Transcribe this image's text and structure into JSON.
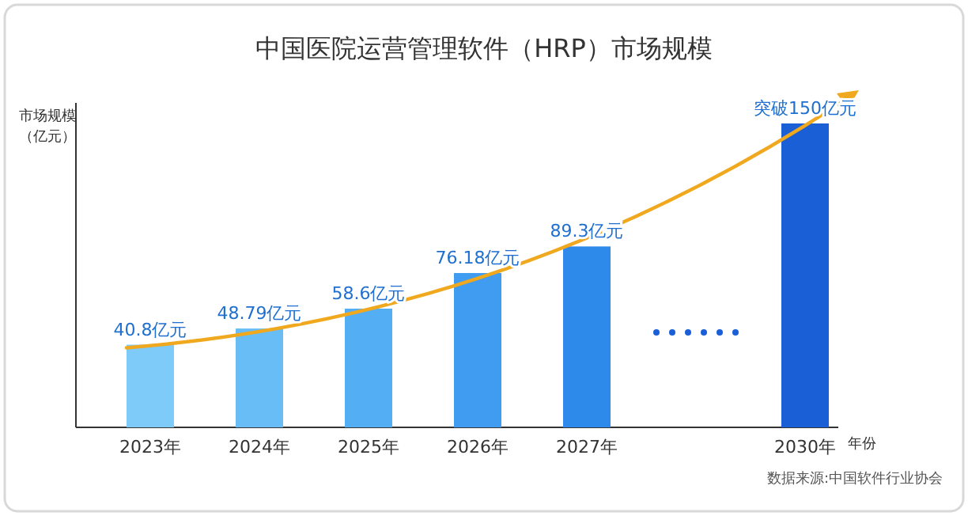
{
  "chart_data": {
    "type": "bar",
    "title": "中国医院运营管理软件（HRP）市场规模",
    "ylabel": "市场规模（亿元）",
    "xlabel": "年份",
    "categories": [
      "2023年",
      "2024年",
      "2025年",
      "2026年",
      "2027年",
      null,
      "2030年"
    ],
    "values": [
      40.8,
      48.79,
      58.6,
      76.18,
      89.3,
      null,
      150
    ],
    "colors": [
      "#7ecbfa",
      "#68bdf7",
      "#54aef4",
      "#3f9cf0",
      "#2d89ea",
      null,
      "#1a5fd6"
    ],
    "value_labels": [
      "40.8亿元",
      "48.79亿元",
      "58.6亿元",
      "76.18亿元",
      "89.3亿元",
      null,
      "突破150亿元"
    ],
    "annotations": [
      "数据来源:中国软件行业协会"
    ]
  }
}
